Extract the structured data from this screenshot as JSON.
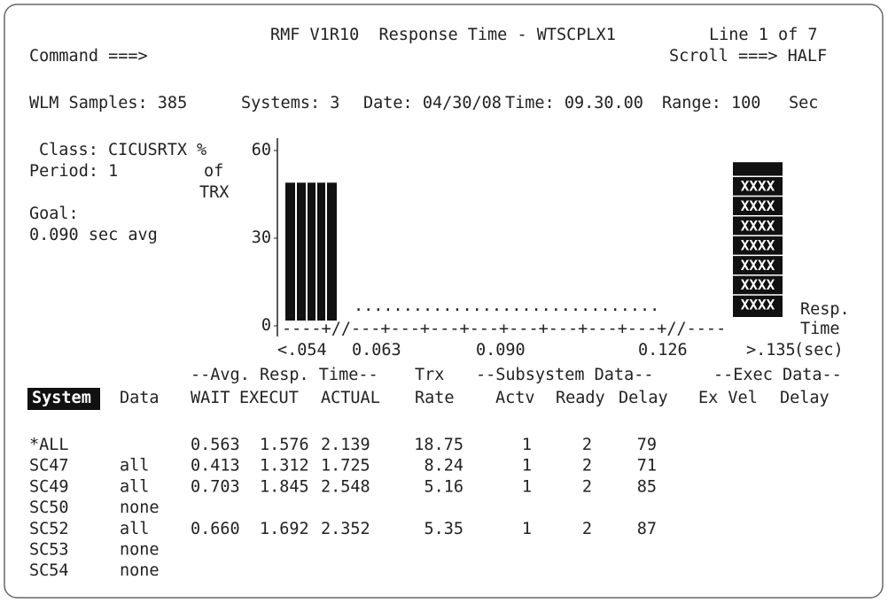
{
  "header": {
    "title": "RMF V1R10  Response Time - WTSCPLX1",
    "line_info": "Line 1 of 7",
    "command": "Command ===>",
    "scroll": "Scroll ===> HALF"
  },
  "summary": [
    "WLM Samples: 385",
    "Systems: 3",
    "Date: 04/30/08",
    "Time: 09.30.00",
    "Range: 100",
    "Sec"
  ],
  "class_info": {
    "class": "Class: CICUSRTX",
    "period": "Period: 1",
    "goal_label": "Goal:",
    "goal": "0.090 sec avg"
  },
  "chart_data": {
    "type": "bar",
    "ylabel": [
      "%",
      "of",
      "TRX"
    ],
    "ylim": [
      0,
      60
    ],
    "yticks": [
      0,
      30,
      60
    ],
    "bars": [
      {
        "bucket": "<.054",
        "value": 49
      },
      {
        "bucket": ">.135",
        "value": 56,
        "fill_label": "XXXX"
      }
    ],
    "dots": "...............................",
    "axis_line": "----+//---+---+---+---+---+---+---+---+//----",
    "bucket_labels": [
      "<.054",
      "0.063",
      "0.090",
      "0.126",
      ">.135"
    ],
    "xlabel": [
      "Resp.",
      "Time",
      "(sec)"
    ]
  },
  "table": {
    "group_headers": [
      "--Avg. Resp. Time--",
      "Trx",
      "--Subsystem Data--",
      "--Exec Data--"
    ],
    "columns": [
      "System",
      "Data",
      "WAIT",
      "EXECUT",
      "ACTUAL",
      "Rate",
      "Actv",
      "Ready",
      "Delay",
      "Ex Vel",
      "Delay"
    ],
    "rows": [
      {
        "system": "*ALL",
        "wait": "0.563",
        "execut": "1.576",
        "actual": "2.139",
        "rate": "18.75",
        "actv": "1",
        "ready": "2",
        "delay": "79"
      },
      {
        "system": "SC47",
        "data": "all",
        "wait": "0.413",
        "execut": "1.312",
        "actual": "1.725",
        "rate": "8.24",
        "actv": "1",
        "ready": "2",
        "delay": "71"
      },
      {
        "system": "SC49",
        "data": "all",
        "wait": "0.703",
        "execut": "1.845",
        "actual": "2.548",
        "rate": "5.16",
        "actv": "1",
        "ready": "2",
        "delay": "85"
      },
      {
        "system": "SC50",
        "data": "none"
      },
      {
        "system": "SC52",
        "data": "all",
        "wait": "0.660",
        "execut": "1.692",
        "actual": "2.352",
        "rate": "5.35",
        "actv": "1",
        "ready": "2",
        "delay": "87"
      },
      {
        "system": "SC53",
        "data": "none"
      },
      {
        "system": "SC54",
        "data": "none"
      }
    ]
  }
}
